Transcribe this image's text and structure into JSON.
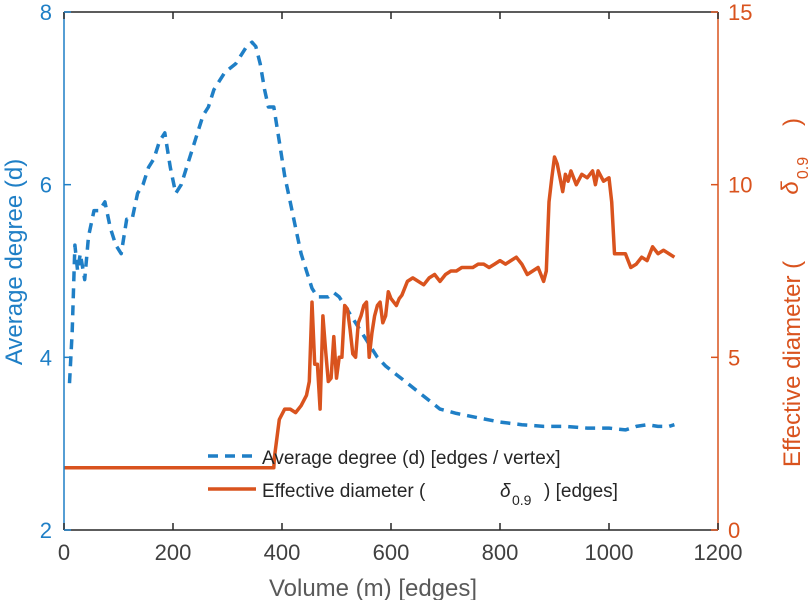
{
  "colors": {
    "left_axis": "#1f7fc6",
    "right_axis": "#d9531e",
    "degree_line": "#1f7fc6",
    "diameter_line": "#d9531e",
    "frame": "#262626",
    "text": "#262626"
  },
  "chart_data": {
    "type": "line",
    "title": "",
    "xlabel": "Volume (m) [edges]",
    "ylabel_left": "Average degree (d)",
    "ylabel_right": "Effective diameter (δ0.9)",
    "xlim": [
      0,
      1200
    ],
    "ylim_left": [
      2,
      8
    ],
    "ylim_right": [
      0,
      15
    ],
    "xticks": [
      0,
      200,
      400,
      600,
      800,
      1000,
      1200
    ],
    "yticks_left": [
      2,
      4,
      6,
      8
    ],
    "yticks_right": [
      0,
      5,
      10,
      15
    ],
    "grid": false,
    "legend_position": "lower-center",
    "series": [
      {
        "name": "Average degree (d) [edges / vertex]",
        "axis": "left",
        "style": "dashed",
        "x": [
          10,
          15,
          20,
          25,
          30,
          38,
          45,
          55,
          65,
          75,
          85,
          95,
          105,
          115,
          125,
          135,
          145,
          155,
          165,
          175,
          185,
          195,
          205,
          215,
          225,
          235,
          245,
          255,
          265,
          275,
          285,
          295,
          305,
          315,
          325,
          335,
          345,
          352,
          360,
          368,
          375,
          385,
          395,
          405,
          415,
          425,
          435,
          445,
          455,
          465,
          475,
          485,
          495,
          505,
          515,
          525,
          535,
          545,
          555,
          565,
          575,
          590,
          610,
          630,
          650,
          670,
          690,
          720,
          760,
          800,
          840,
          880,
          920,
          960,
          1000,
          1030,
          1050,
          1070,
          1090,
          1110,
          1120
        ],
        "values": [
          3.7,
          4.3,
          5.3,
          5.0,
          5.2,
          4.9,
          5.4,
          5.7,
          5.7,
          5.8,
          5.5,
          5.3,
          5.2,
          5.6,
          5.6,
          5.9,
          6.0,
          6.2,
          6.3,
          6.5,
          6.6,
          6.2,
          5.9,
          6.0,
          6.2,
          6.4,
          6.6,
          6.8,
          6.9,
          7.1,
          7.2,
          7.3,
          7.35,
          7.4,
          7.5,
          7.6,
          7.65,
          7.6,
          7.4,
          7.1,
          6.9,
          6.9,
          6.5,
          6.1,
          5.8,
          5.5,
          5.2,
          5.0,
          4.8,
          4.7,
          4.7,
          4.7,
          4.75,
          4.7,
          4.6,
          4.5,
          4.4,
          4.3,
          4.2,
          4.1,
          4.0,
          3.9,
          3.8,
          3.7,
          3.6,
          3.5,
          3.4,
          3.35,
          3.3,
          3.25,
          3.22,
          3.2,
          3.2,
          3.18,
          3.18,
          3.16,
          3.2,
          3.22,
          3.2,
          3.2,
          3.22
        ]
      },
      {
        "name": "Effective diameter (δ0.9) [edges]",
        "axis": "right",
        "style": "solid",
        "x": [
          0,
          385,
          386,
          395,
          405,
          415,
          425,
          435,
          445,
          450,
          455,
          460,
          465,
          470,
          475,
          480,
          485,
          490,
          495,
          500,
          505,
          510,
          515,
          520,
          525,
          530,
          535,
          540,
          545,
          550,
          555,
          560,
          565,
          570,
          575,
          580,
          585,
          590,
          595,
          600,
          605,
          610,
          615,
          620,
          630,
          640,
          650,
          660,
          670,
          680,
          690,
          700,
          710,
          720,
          730,
          740,
          750,
          760,
          770,
          780,
          790,
          800,
          810,
          820,
          830,
          840,
          850,
          860,
          870,
          880,
          885,
          890,
          895,
          900,
          905,
          910,
          915,
          920,
          925,
          930,
          940,
          950,
          960,
          970,
          975,
          980,
          990,
          1000,
          1005,
          1010,
          1020,
          1030,
          1040,
          1050,
          1060,
          1070,
          1080,
          1090,
          1100,
          1110,
          1120
        ],
        "values": [
          1.8,
          1.8,
          2.1,
          3.2,
          3.5,
          3.5,
          3.4,
          3.6,
          3.9,
          4.3,
          6.6,
          4.8,
          4.8,
          3.5,
          6.2,
          5.2,
          4.3,
          4.4,
          5.6,
          4.4,
          5.0,
          5.0,
          6.5,
          6.4,
          5.8,
          5.1,
          5.0,
          6.0,
          6.2,
          6.5,
          6.6,
          5.0,
          5.7,
          6.2,
          6.5,
          6.6,
          6.0,
          6.2,
          6.9,
          6.7,
          6.6,
          6.5,
          6.7,
          6.8,
          7.2,
          7.3,
          7.2,
          7.1,
          7.3,
          7.4,
          7.2,
          7.4,
          7.5,
          7.5,
          7.6,
          7.6,
          7.6,
          7.7,
          7.7,
          7.6,
          7.7,
          7.8,
          7.7,
          7.8,
          7.9,
          7.7,
          7.4,
          7.5,
          7.6,
          7.2,
          7.5,
          9.5,
          10.2,
          10.8,
          10.6,
          10.2,
          9.8,
          10.3,
          10.1,
          10.4,
          10.0,
          10.3,
          10.2,
          10.4,
          10.0,
          10.4,
          10.1,
          10.2,
          9.5,
          8.0,
          8.0,
          8.0,
          7.6,
          7.7,
          7.9,
          7.8,
          8.2,
          8.0,
          8.1,
          8.0,
          7.9
        ]
      }
    ]
  },
  "legend": {
    "degree_label": "Average degree (d) [edges / vertex]",
    "diameter_prefix": "Effective diameter (",
    "diameter_symbol": "δ",
    "diameter_subscript": "0.9",
    "diameter_suffix": ") [edges]"
  },
  "axes": {
    "xlabel": "Volume (m) [edges]",
    "ylabel_left": "Average degree (d)",
    "ylabel_right_prefix": "Effective diameter (",
    "ylabel_right_symbol": "δ",
    "ylabel_right_subscript": "0.9",
    "ylabel_right_suffix": ")"
  }
}
